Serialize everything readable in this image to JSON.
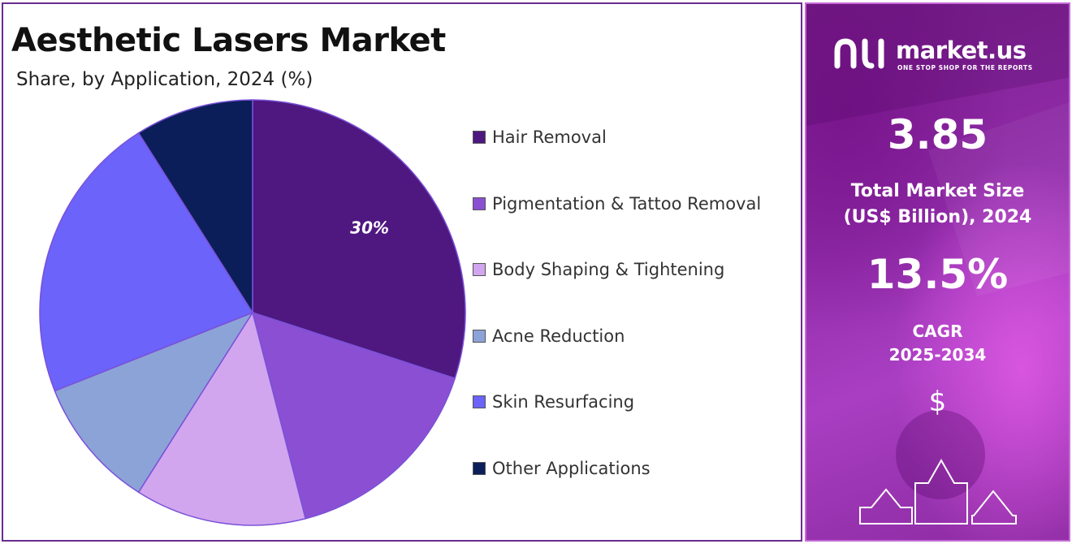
{
  "title": "Aesthetic Lasers Market",
  "subtitle": "Share, by Application, 2024 (%)",
  "chart_data": {
    "type": "pie",
    "title": "Aesthetic Lasers Market",
    "subtitle": "Share, by Application, 2024 (%)",
    "categories": [
      "Hair Removal",
      "Pigmentation & Tattoo Removal",
      "Body Shaping & Tightening",
      "Acne Reduction",
      "Skin Resurfacing",
      "Other Applications"
    ],
    "values": [
      30,
      16,
      13,
      10,
      22,
      9
    ],
    "colors": [
      "#4f1780",
      "#8a4fd3",
      "#d1a6ee",
      "#8ca3d8",
      "#6b63fa",
      "#0b1e5a"
    ],
    "data_labels": [
      "30%",
      "",
      "",
      "",
      "",
      ""
    ],
    "legend_placement": "right",
    "start_angle_deg": 0,
    "direction": "clockwise"
  },
  "sidebar": {
    "brand_name": "market.us",
    "brand_tagline": "ONE STOP SHOP FOR THE REPORTS",
    "market_size_value": "3.85",
    "market_size_label_line1": "Total Market Size",
    "market_size_label_line2": "(US$ Billion), 2024",
    "cagr_value": "13.5%",
    "cagr_label_line1": "CAGR",
    "cagr_label_line2": "2025-2034",
    "currency_symbol": "$",
    "accent_color": "#9b32b3"
  }
}
